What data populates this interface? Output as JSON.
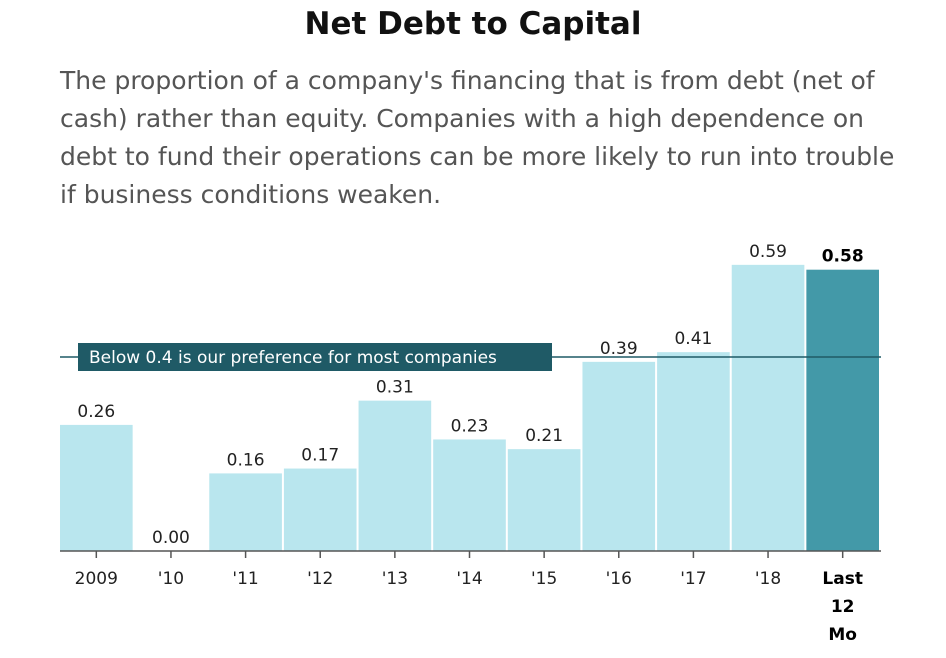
{
  "title": "Net Debt to Capital",
  "subtitle": "The proportion of a company's financing that is from debt (net of cash) rather than equity. Companies with a high dependence on debt to fund their operations can be more likely to run into trouble if business conditions weaken.",
  "colors": {
    "bar": "#b9e6ee",
    "highlight": "#4399a8",
    "reference": "#1f5a66",
    "axis": "#555555"
  },
  "chart_data": {
    "type": "bar",
    "categories": [
      "2009",
      "'10",
      "'11",
      "'12",
      "'13",
      "'14",
      "'15",
      "'16",
      "'17",
      "'18",
      "Last 12 Mo"
    ],
    "tick_label_lines": [
      [
        "2009"
      ],
      [
        "'10"
      ],
      [
        "'11"
      ],
      [
        "'12"
      ],
      [
        "'13"
      ],
      [
        "'14"
      ],
      [
        "'15"
      ],
      [
        "'16"
      ],
      [
        "'17"
      ],
      [
        "'18"
      ],
      [
        "Last",
        "12",
        "Mo"
      ]
    ],
    "values": [
      0.26,
      0.0,
      0.16,
      0.17,
      0.31,
      0.23,
      0.21,
      0.39,
      0.41,
      0.59,
      0.58
    ],
    "value_labels": [
      "0.26",
      "0.00",
      "0.16",
      "0.17",
      "0.31",
      "0.23",
      "0.21",
      "0.39",
      "0.41",
      "0.59",
      "0.58"
    ],
    "highlight_index": 10,
    "ylim": [
      0,
      0.6
    ],
    "grid": false,
    "reference_line": {
      "value": 0.4,
      "label": "Below 0.4 is our preference for most companies"
    }
  }
}
